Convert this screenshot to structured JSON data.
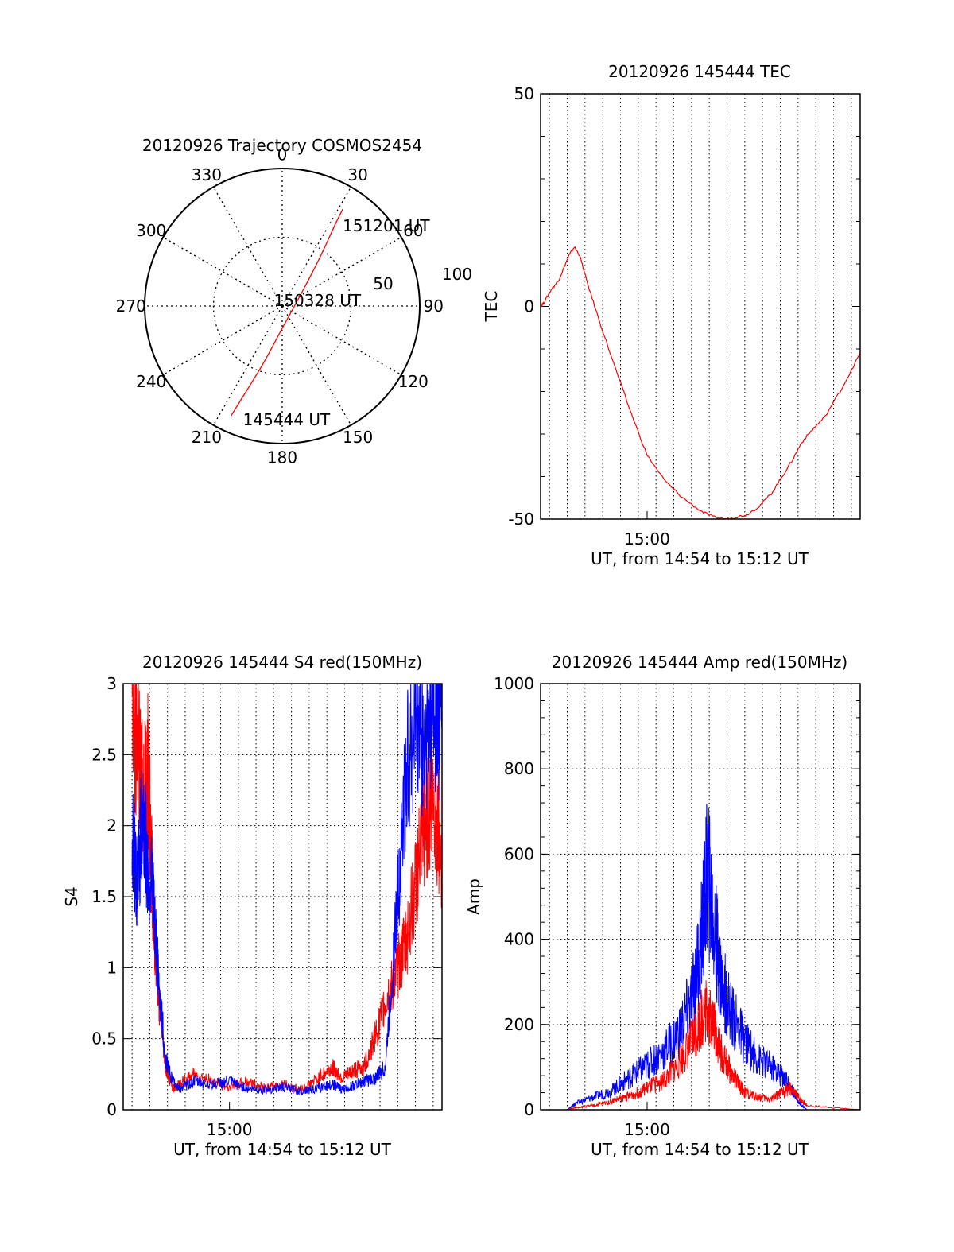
{
  "chart_data": [
    {
      "type": "polar",
      "title": "20120926 Trajectory COSMOS2454",
      "angle_labels": [
        "0",
        "30",
        "60",
        "90",
        "120",
        "150",
        "180",
        "210",
        "240",
        "270",
        "300",
        "330"
      ],
      "radius_labels": [
        "50",
        "100"
      ],
      "rlim": [
        0,
        100
      ],
      "grid": true,
      "series": [
        {
          "color": "#ff0000",
          "points": [
            {
              "az": 205,
              "el_offset": 88
            },
            {
              "az": 203,
              "el_offset": 68
            },
            {
              "az": 198,
              "el_offset": 44
            },
            {
              "az": 180,
              "el_offset": 16
            },
            {
              "az": 70,
              "el_offset": 12
            },
            {
              "az": 38,
              "el_offset": 45
            },
            {
              "az": 33,
              "el_offset": 70
            },
            {
              "az": 32,
              "el_offset": 83
            }
          ]
        }
      ],
      "annotations": [
        {
          "text": "151201 UT",
          "az": 32,
          "el_offset": 83
        },
        {
          "text": "150328 UT",
          "az": 70,
          "el_offset": 12
        },
        {
          "text": "145444 UT",
          "az": 205,
          "el_offset": 88
        }
      ]
    },
    {
      "type": "line",
      "title": "20120926 145444 TEC",
      "xlabel": "UT, from 14:54 to 15:12 UT",
      "ylabel": "TEC",
      "xlim": [
        0,
        18
      ],
      "ylim": [
        -50,
        50
      ],
      "xticks": [
        {
          "value": 6,
          "label": "15:00"
        }
      ],
      "yticks": [
        "-50",
        "0",
        "50"
      ],
      "grid": true,
      "series": [
        {
          "color": "#ff0000",
          "x": [
            0.0,
            0.2,
            0.6,
            1.0,
            1.3,
            1.6,
            1.9,
            2.2,
            2.6,
            3.2,
            4.0,
            5.0,
            6.0,
            7.0,
            8.0,
            9.0,
            9.7,
            10.5,
            11.0,
            11.6,
            12.3,
            13.0,
            13.6,
            14.2,
            14.7,
            15.3,
            16.0,
            17.0,
            18.0
          ],
          "y": [
            0,
            1,
            4,
            6,
            9,
            12,
            14,
            12,
            6,
            -2,
            -12,
            -24,
            -35,
            -41,
            -45,
            -48,
            -49.5,
            -50,
            -49.5,
            -49,
            -47,
            -44,
            -40,
            -36,
            -32,
            -29,
            -26,
            -19,
            -11
          ]
        }
      ]
    },
    {
      "type": "line",
      "title": "20120926 145444 S4 red(150MHz)",
      "xlabel": "UT, from 14:54 to 15:12 UT",
      "ylabel": "S4",
      "xlim": [
        0,
        18
      ],
      "ylim": [
        0,
        3
      ],
      "xticks": [
        {
          "value": 6,
          "label": "15:00"
        }
      ],
      "yticks": [
        "0",
        "0.5",
        "1",
        "1.5",
        "2",
        "2.5",
        "3"
      ],
      "grid": true,
      "series": [
        {
          "color": "#ff0000",
          "x": [
            0.5,
            0.8,
            1.1,
            1.4,
            1.7,
            2.0,
            2.4,
            2.8,
            3.2,
            4,
            5,
            6,
            7,
            8,
            9,
            10,
            11,
            11.8,
            12.4,
            13,
            13.6,
            14.2,
            14.8,
            15.5,
            16.0,
            16.5,
            17.0,
            17.5,
            18.0
          ],
          "y": [
            2.8,
            2.6,
            2.2,
            2.4,
            1.4,
            0.8,
            0.3,
            0.15,
            0.18,
            0.25,
            0.2,
            0.16,
            0.2,
            0.15,
            0.18,
            0.14,
            0.22,
            0.3,
            0.22,
            0.28,
            0.3,
            0.5,
            0.75,
            1.0,
            1.2,
            1.6,
            2.0,
            2.2,
            1.8
          ]
        },
        {
          "color": "#0000ff",
          "x": [
            0.5,
            0.8,
            1.1,
            1.4,
            1.7,
            2.0,
            2.4,
            2.8,
            3.2,
            4,
            5,
            6,
            7,
            8,
            9,
            10,
            11,
            11.8,
            12.4,
            13,
            13.6,
            14.2,
            14.8,
            15.5,
            16.0,
            16.5,
            17.0,
            17.5,
            18.0
          ],
          "y": [
            1.9,
            1.6,
            2.1,
            1.7,
            1.5,
            0.9,
            0.35,
            0.2,
            0.15,
            0.2,
            0.18,
            0.2,
            0.15,
            0.14,
            0.16,
            0.13,
            0.15,
            0.18,
            0.14,
            0.17,
            0.2,
            0.22,
            0.3,
            1.5,
            2.4,
            2.8,
            2.6,
            2.9,
            2.7
          ]
        }
      ]
    },
    {
      "type": "line",
      "title": "20120926 145444 Amp red(150MHz)",
      "xlabel": "UT, from 14:54 to 15:12 UT",
      "ylabel": "Amp",
      "xlim": [
        0,
        18
      ],
      "ylim": [
        0,
        1000
      ],
      "xticks": [
        {
          "value": 6,
          "label": "15:00"
        }
      ],
      "yticks": [
        "0",
        "200",
        "400",
        "600",
        "800",
        "1000"
      ],
      "grid": true,
      "series": [
        {
          "color": "#0000ff",
          "x": [
            0,
            1.5,
            2.0,
            3.0,
            4.0,
            4.8,
            5.5,
            6.2,
            7.0,
            7.8,
            8.5,
            9.0,
            9.4,
            9.8,
            10.2,
            10.8,
            11.5,
            12.2,
            13.0,
            13.6,
            14.0,
            14.5,
            15.0,
            18.0
          ],
          "y": [
            0,
            0,
            15,
            30,
            45,
            70,
            90,
            110,
            140,
            180,
            260,
            380,
            560,
            420,
            300,
            220,
            160,
            120,
            100,
            80,
            60,
            20,
            0,
            0
          ]
        },
        {
          "color": "#ff0000",
          "x": [
            0,
            1.5,
            2.0,
            3.0,
            4.0,
            4.8,
            5.5,
            6.2,
            7.0,
            7.8,
            8.5,
            9.0,
            9.4,
            9.8,
            10.2,
            10.8,
            11.5,
            12.2,
            13.0,
            13.6,
            14.0,
            14.5,
            15.0,
            18.0
          ],
          "y": [
            0,
            0,
            5,
            10,
            20,
            30,
            40,
            55,
            70,
            110,
            160,
            210,
            240,
            190,
            130,
            80,
            40,
            30,
            25,
            40,
            50,
            30,
            10,
            0
          ]
        }
      ]
    }
  ]
}
